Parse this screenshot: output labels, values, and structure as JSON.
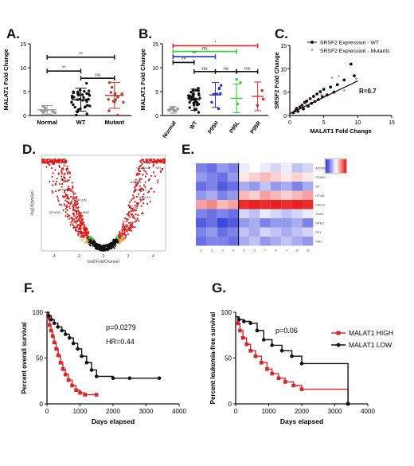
{
  "panel_labels": [
    "A.",
    "B.",
    "C.",
    "D.",
    "E.",
    "F.",
    "G."
  ],
  "chart_data": [
    {
      "id": "A",
      "type": "scatter",
      "ylabel": "MALAT1 Fold Change",
      "categories": [
        "Normal",
        "WT",
        "Mutant"
      ],
      "ylim": [
        0,
        15
      ],
      "yticks": [
        0,
        5,
        10,
        15
      ],
      "groups": [
        {
          "name": "Normal",
          "color": "#9a9a9a",
          "mean": 1.2,
          "sd": 0.9,
          "n": 11
        },
        {
          "name": "WT",
          "color": "#111111",
          "mean": 3.3,
          "sd": 2.4,
          "n": 38
        },
        {
          "name": "Mutant",
          "color": "#c0392b",
          "mean": 4.2,
          "sd": 2.7,
          "n": 14
        }
      ],
      "sig_bars": [
        {
          "from": "Normal",
          "to": "Mutant",
          "y": 12.2,
          "text": "**"
        },
        {
          "from": "Normal",
          "to": "WT",
          "y": 9.3,
          "text": "**"
        },
        {
          "from": "WT",
          "to": "Mutant",
          "y": 7.8,
          "text": "ns"
        }
      ]
    },
    {
      "id": "B",
      "type": "scatter",
      "ylabel": "MALAT1 Fold Change",
      "categories": [
        "Normal",
        "WT",
        "P95H",
        "P95L",
        "P95R"
      ],
      "ylim": [
        0,
        15
      ],
      "yticks": [
        0,
        5,
        10,
        15
      ],
      "groups": [
        {
          "name": "Normal",
          "color": "#9a9a9a",
          "mean": 1.2,
          "sd": 0.7,
          "n": 9
        },
        {
          "name": "WT",
          "color": "#111111",
          "mean": 3.3,
          "sd": 2.2,
          "n": 36
        },
        {
          "name": "P95H",
          "color": "#2233cc",
          "mean": 4.3,
          "sd": 2.6,
          "n": 8
        },
        {
          "name": "P95L",
          "color": "#33cc33",
          "mean": 3.6,
          "sd": 3.0,
          "n": 3
        },
        {
          "name": "P95R",
          "color": "#dd2222",
          "mean": 4.0,
          "sd": 3.0,
          "n": 3
        }
      ],
      "sig_bars": [
        {
          "from": "Normal",
          "to": "P95R",
          "y": 14.6,
          "text": "*",
          "color": "#dd2222"
        },
        {
          "from": "Normal",
          "to": "P95L",
          "y": 13.4,
          "text": "ns",
          "color": "#33cc33"
        },
        {
          "from": "Normal",
          "to": "P95H",
          "y": 12.3,
          "text": "**",
          "color": "#2233cc"
        },
        {
          "from": "Normal",
          "to": "WT",
          "y": 11.1,
          "text": "**",
          "color": "#111111"
        },
        {
          "from": "WT",
          "to": "P95H",
          "y": 9.2,
          "text": "ns",
          "color": "#111111"
        },
        {
          "from": "P95H",
          "to": "P95L",
          "y": 9.2,
          "text": "ns",
          "color": "#111111"
        },
        {
          "from": "P95L",
          "to": "P95R",
          "y": 9.2,
          "text": "ns",
          "color": "#111111"
        }
      ]
    },
    {
      "id": "C",
      "type": "scatter",
      "xlabel": "MALAT1 Fold Change",
      "ylabel": "SRSF2 Fold Change",
      "xlim": [
        0,
        15
      ],
      "ylim": [
        0,
        15
      ],
      "xticks": [
        0,
        5,
        10,
        15
      ],
      "yticks": [
        0,
        5,
        10,
        15
      ],
      "legend": [
        "SRSF2 Expression - WT",
        "SRSF2 Expression - Mutants"
      ],
      "legend_position": "top",
      "annotation": "R=0.7",
      "series": [
        {
          "name": "SRSF2 Expression - WT",
          "color": "#111111",
          "points": [
            [
              0.5,
              0.6
            ],
            [
              0.8,
              1.0
            ],
            [
              1.0,
              1.5
            ],
            [
              1.2,
              0.9
            ],
            [
              1.5,
              1.8
            ],
            [
              1.8,
              2.2
            ],
            [
              2.0,
              1.4
            ],
            [
              2.2,
              2.8
            ],
            [
              2.5,
              3.1
            ],
            [
              2.7,
              2.0
            ],
            [
              3.0,
              3.6
            ],
            [
              3.2,
              2.6
            ],
            [
              3.5,
              4.1
            ],
            [
              3.7,
              3.0
            ],
            [
              4.0,
              4.6
            ],
            [
              4.2,
              3.4
            ],
            [
              4.5,
              5.1
            ],
            [
              4.8,
              4.0
            ],
            [
              5.0,
              5.6
            ],
            [
              5.5,
              4.4
            ],
            [
              6.0,
              6.1
            ],
            [
              6.5,
              5.0
            ],
            [
              7.0,
              6.6
            ],
            [
              8.0,
              7.6
            ],
            [
              9.0,
              11.0
            ],
            [
              9.5,
              8.5
            ]
          ]
        },
        {
          "name": "SRSF2 Expression - Mutants",
          "color": "#d62828",
          "points": [
            [
              1.0,
              0.8
            ],
            [
              1.6,
              1.9
            ],
            [
              2.3,
              2.2
            ],
            [
              3.1,
              3.3
            ],
            [
              3.9,
              2.8
            ],
            [
              4.6,
              4.2
            ],
            [
              5.2,
              3.9
            ],
            [
              6.2,
              7.8
            ],
            [
              7.2,
              8.2
            ],
            [
              8.0,
              5.1
            ],
            [
              9.8,
              7.6
            ]
          ]
        }
      ],
      "fit_line": {
        "x": [
          0,
          10
        ],
        "y": [
          0.4,
          7.4
        ]
      }
    },
    {
      "id": "D",
      "type": "scatter",
      "xlabel": "log2(FoldChange)",
      "ylabel": "-log10(pvalue)",
      "xticks": [
        -4,
        -2,
        0,
        2,
        4
      ],
      "gene_labels": [
        "CD48/CD",
        "SRI",
        "ATMUR",
        "SHMT1",
        "SHOX1D",
        "SCOM",
        "PA/LD",
        "MALAT1",
        "ARJUN",
        "ZHANG",
        "CEASO"
      ]
    },
    {
      "id": "E",
      "type": "heatmap",
      "rows": 9,
      "cols": 11,
      "row_labels": [
        "ATPAN3",
        "CDKN1",
        "SP",
        "HTUM",
        "MALAT",
        "CANT",
        "NPM2",
        "RPL",
        "RMC"
      ],
      "col_labels": [
        "1",
        "2",
        "3",
        "4",
        "5",
        "6",
        "7",
        "8",
        "9",
        "10",
        "11"
      ],
      "values": [
        [
          -0.6,
          -0.7,
          -0.5,
          -0.6,
          -0.1,
          0.0,
          -0.1,
          -0.2,
          -0.1,
          -0.3,
          -0.2
        ],
        [
          -0.5,
          -0.6,
          -0.7,
          -0.5,
          0.1,
          0.2,
          0.3,
          0.2,
          0.1,
          0.2,
          0.1
        ],
        [
          -0.7,
          -0.6,
          -0.8,
          -0.7,
          -0.4,
          -0.5,
          -0.3,
          -0.5,
          -0.4,
          -0.6,
          -0.4
        ],
        [
          -0.5,
          -0.4,
          -0.6,
          -0.5,
          0.3,
          0.2,
          0.4,
          0.3,
          0.2,
          0.3,
          0.4
        ],
        [
          0.4,
          0.5,
          0.3,
          0.4,
          0.9,
          0.95,
          0.9,
          0.95,
          0.9,
          0.95,
          0.9
        ],
        [
          -0.6,
          -0.7,
          -0.6,
          -0.7,
          -0.2,
          -0.3,
          -0.1,
          -0.2,
          -0.3,
          -0.2,
          -0.1
        ],
        [
          -0.8,
          -0.7,
          -0.9,
          -0.8,
          -0.5,
          -0.4,
          -0.6,
          -0.5,
          -0.5,
          -0.4,
          -0.6
        ],
        [
          -0.6,
          -0.5,
          -0.7,
          -0.6,
          -0.3,
          -0.4,
          -0.2,
          -0.3,
          -0.4,
          -0.3,
          -0.2
        ],
        [
          -0.7,
          -0.6,
          -0.6,
          -0.7,
          -0.4,
          -0.3,
          -0.5,
          -0.4,
          -0.3,
          -0.4,
          -0.5
        ]
      ]
    },
    {
      "id": "F",
      "type": "line",
      "xlabel": "Days elapsed",
      "ylabel": "Percent overall survival",
      "xlim": [
        0,
        4000
      ],
      "ylim": [
        0,
        100
      ],
      "xticks": [
        0,
        1000,
        2000,
        3000,
        4000
      ],
      "yticks": [
        0,
        50,
        100
      ],
      "annotations": [
        "p=0.0279",
        "HR=0.44"
      ],
      "series": [
        {
          "name": "MALAT1 HIGH",
          "color": "#d62828",
          "marker": "square",
          "points": [
            [
              0,
              100
            ],
            [
              40,
              93
            ],
            [
              80,
              86
            ],
            [
              120,
              80
            ],
            [
              170,
              74
            ],
            [
              220,
              67
            ],
            [
              280,
              60
            ],
            [
              340,
              53
            ],
            [
              410,
              45
            ],
            [
              480,
              38
            ],
            [
              560,
              32
            ],
            [
              650,
              26
            ],
            [
              760,
              20
            ],
            [
              880,
              15
            ],
            [
              1000,
              12
            ],
            [
              1150,
              10
            ],
            [
              1500,
              10
            ]
          ]
        },
        {
          "name": "MALAT1 LOW",
          "color": "#111111",
          "marker": "circle",
          "points": [
            [
              0,
              100
            ],
            [
              60,
              96
            ],
            [
              130,
              92
            ],
            [
              220,
              88
            ],
            [
              330,
              84
            ],
            [
              450,
              80
            ],
            [
              560,
              76
            ],
            [
              680,
              72
            ],
            [
              800,
              66
            ],
            [
              930,
              60
            ],
            [
              1050,
              52
            ],
            [
              1200,
              45
            ],
            [
              1350,
              37
            ],
            [
              1500,
              30
            ],
            [
              2000,
              28
            ],
            [
              2500,
              28
            ],
            [
              3400,
              28
            ]
          ]
        }
      ]
    },
    {
      "id": "G",
      "type": "line",
      "xlabel": "Days elapsed",
      "ylabel": "Percent leukemia-free survival",
      "xlim": [
        0,
        4000
      ],
      "ylim": [
        0,
        100
      ],
      "xticks": [
        0,
        1000,
        2000,
        3000,
        4000
      ],
      "yticks": [
        0,
        50,
        100
      ],
      "annotations": [
        "p=0.06"
      ],
      "legend": [
        "MALAT1 HIGH",
        "MALAT1 LOW"
      ],
      "legend_position": "right",
      "series": [
        {
          "name": "MALAT1 HIGH",
          "color": "#d62828",
          "marker": "square",
          "points": [
            [
              0,
              95
            ],
            [
              60,
              88
            ],
            [
              130,
              80
            ],
            [
              220,
              72
            ],
            [
              330,
              65
            ],
            [
              450,
              58
            ],
            [
              600,
              52
            ],
            [
              780,
              45
            ],
            [
              950,
              38
            ],
            [
              1100,
              33
            ],
            [
              1300,
              28
            ],
            [
              1500,
              24
            ],
            [
              1750,
              20
            ],
            [
              2000,
              16
            ],
            [
              3400,
              0
            ]
          ]
        },
        {
          "name": "MALAT1 LOW",
          "color": "#111111",
          "marker": "circle",
          "points": [
            [
              0,
              95
            ],
            [
              100,
              92
            ],
            [
              250,
              90
            ],
            [
              450,
              88
            ],
            [
              650,
              80
            ],
            [
              850,
              70
            ],
            [
              1100,
              64
            ],
            [
              1400,
              58
            ],
            [
              1700,
              52
            ],
            [
              2000,
              44
            ],
            [
              3400,
              0
            ]
          ]
        }
      ]
    }
  ]
}
